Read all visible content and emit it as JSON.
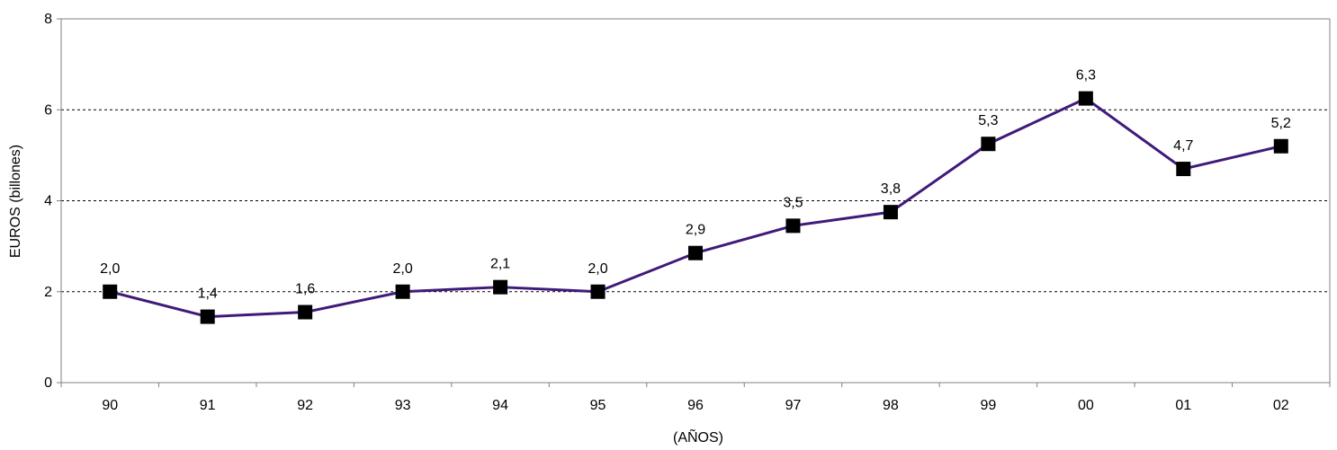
{
  "chart_data": {
    "type": "line",
    "title": "",
    "xlabel": "(AÑOS)",
    "ylabel": "EUROS (billones)",
    "categories": [
      "90",
      "91",
      "92",
      "93",
      "94",
      "95",
      "96",
      "97",
      "98",
      "99",
      "00",
      "01",
      "02"
    ],
    "series": [
      {
        "values": [
          2.0,
          1.45,
          1.55,
          2.0,
          2.1,
          2.0,
          2.85,
          3.45,
          3.75,
          5.25,
          6.25,
          4.7,
          5.2
        ],
        "data_labels": [
          "2,0",
          "1,4",
          "1,6",
          "2,0",
          "2,1",
          "2,0",
          "2,9",
          "3,5",
          "3,8",
          "5,3",
          "6,3",
          "4,7",
          "5,2"
        ]
      }
    ],
    "ylim": [
      0,
      8
    ],
    "yticks": [
      0,
      2,
      4,
      6,
      8
    ],
    "ytick_labels": [
      "0",
      "2",
      "4",
      "6",
      "8"
    ],
    "grid": "horizontal dashed at major ticks",
    "legend": "none",
    "colors": {
      "line": "#3f1a7a",
      "marker": "#000000",
      "grid": "#000000",
      "axis": "#808080"
    }
  }
}
